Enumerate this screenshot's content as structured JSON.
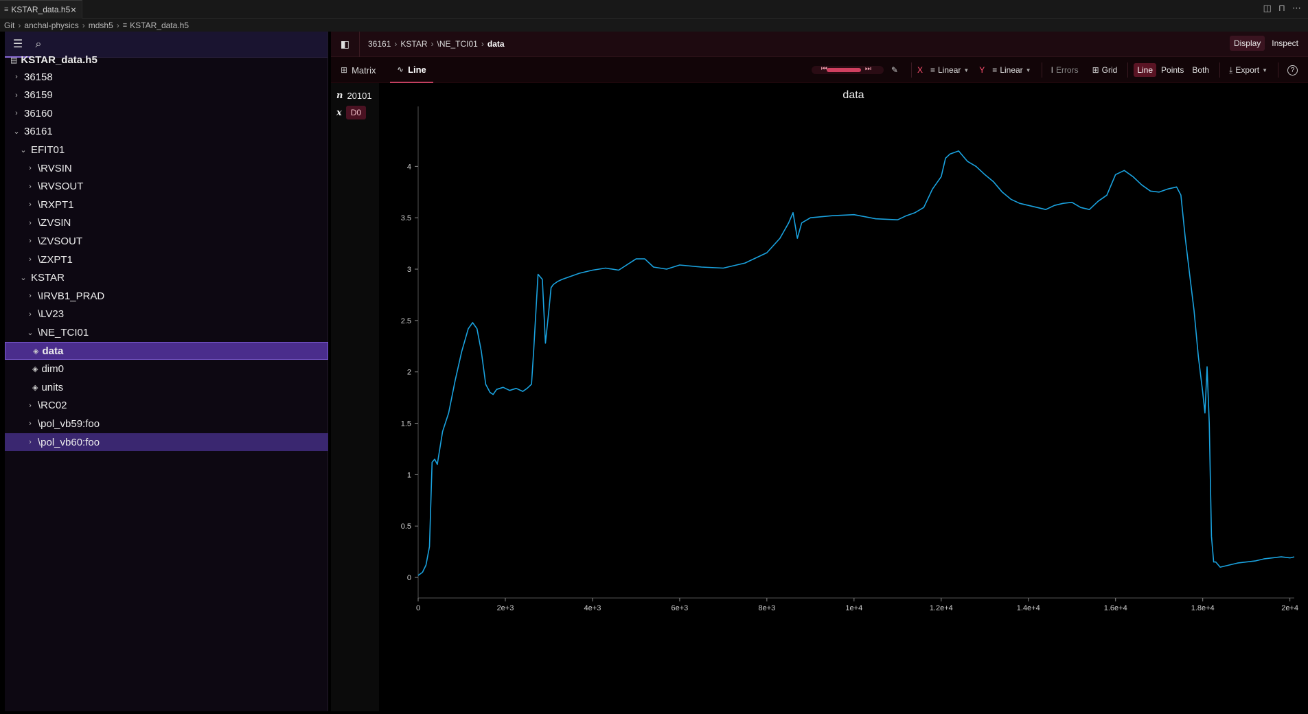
{
  "tab": {
    "title": "KSTAR_data.h5"
  },
  "breadcrumb": [
    "Git",
    "anchal-physics",
    "mdsh5",
    "KSTAR_data.h5"
  ],
  "sidebar": {
    "root": "KSTAR_data.h5",
    "nodes": [
      {
        "label": "36158",
        "depth": 0,
        "kind": "group",
        "open": false
      },
      {
        "label": "36159",
        "depth": 0,
        "kind": "group",
        "open": false
      },
      {
        "label": "36160",
        "depth": 0,
        "kind": "group",
        "open": false
      },
      {
        "label": "36161",
        "depth": 0,
        "kind": "group",
        "open": true
      },
      {
        "label": "EFIT01",
        "depth": 1,
        "kind": "group",
        "open": true
      },
      {
        "label": "\\RVSIN",
        "depth": 2,
        "kind": "group",
        "open": false
      },
      {
        "label": "\\RVSOUT",
        "depth": 2,
        "kind": "group",
        "open": false
      },
      {
        "label": "\\RXPT1",
        "depth": 2,
        "kind": "group",
        "open": false
      },
      {
        "label": "\\ZVSIN",
        "depth": 2,
        "kind": "group",
        "open": false
      },
      {
        "label": "\\ZVSOUT",
        "depth": 2,
        "kind": "group",
        "open": false
      },
      {
        "label": "\\ZXPT1",
        "depth": 2,
        "kind": "group",
        "open": false
      },
      {
        "label": "KSTAR",
        "depth": 1,
        "kind": "group",
        "open": true
      },
      {
        "label": "\\IRVB1_PRAD",
        "depth": 2,
        "kind": "group",
        "open": false
      },
      {
        "label": "\\LV23",
        "depth": 2,
        "kind": "group",
        "open": false
      },
      {
        "label": "\\NE_TCI01",
        "depth": 2,
        "kind": "group",
        "open": true
      },
      {
        "label": "data",
        "depth": 3,
        "kind": "dataset",
        "selected": true
      },
      {
        "label": "dim0",
        "depth": 3,
        "kind": "dataset"
      },
      {
        "label": "units",
        "depth": 3,
        "kind": "dataset"
      },
      {
        "label": "\\RC02",
        "depth": 2,
        "kind": "group",
        "open": false
      },
      {
        "label": "\\pol_vb59:foo",
        "depth": 2,
        "kind": "group",
        "open": false
      },
      {
        "label": "\\pol_vb60:foo",
        "depth": 2,
        "kind": "group",
        "open": false,
        "hover": true
      }
    ]
  },
  "main": {
    "path": [
      "36161",
      "KSTAR",
      "\\NE_TCI01",
      "data"
    ],
    "modes": [
      "Display",
      "Inspect"
    ],
    "tabs": [
      "Matrix",
      "Line"
    ],
    "toolbar": {
      "x_label": "X",
      "x_scale": "Linear",
      "y_label": "Y",
      "y_scale": "Linear",
      "errors": "Errors",
      "grid": "Grid",
      "line": "Line",
      "points": "Points",
      "both": "Both",
      "export": "Export"
    },
    "dims": {
      "n_label": "n",
      "n_value": "20101",
      "x_label": "x",
      "x_value": "D0"
    }
  },
  "colors": {
    "accent": "#c44060",
    "line": "#1aa3e0",
    "selection": "#4a2d8c"
  },
  "chart_data": {
    "type": "line",
    "title": "data",
    "xlabel": "",
    "ylabel": "",
    "xlim": [
      0,
      20100
    ],
    "ylim": [
      -0.2,
      4.45
    ],
    "xticks": [
      "0",
      "2e+3",
      "4e+3",
      "6e+3",
      "8e+3",
      "1e+4",
      "1.2e+4",
      "1.4e+4",
      "1.6e+4",
      "1.8e+4",
      "2e+4"
    ],
    "yticks": [
      "0",
      "0.5",
      "1",
      "1.5",
      "2",
      "2.5",
      "3",
      "3.5",
      "4"
    ],
    "grid": false,
    "series": [
      {
        "x": [
          0,
          100,
          180,
          260,
          320,
          380,
          440,
          560,
          700,
          850,
          1000,
          1150,
          1250,
          1350,
          1450,
          1550,
          1650,
          1720,
          1800,
          1950,
          2100,
          2250,
          2400,
          2500,
          2600,
          2650,
          2750,
          2850,
          2920,
          3000,
          3050,
          3100,
          3200,
          3300,
          3500,
          3700,
          4000,
          4300,
          4600,
          5000,
          5200,
          5400,
          5700,
          6000,
          6500,
          7000,
          7500,
          8000,
          8300,
          8500,
          8600,
          8700,
          8800,
          9000,
          9500,
          10000,
          10500,
          11000,
          11200,
          11400,
          11600,
          11800,
          12000,
          12100,
          12200,
          12400,
          12600,
          12800,
          13000,
          13200,
          13400,
          13600,
          13800,
          14000,
          14200,
          14400,
          14600,
          14800,
          15000,
          15200,
          15400,
          15600,
          15800,
          16000,
          16200,
          16400,
          16600,
          16800,
          17000,
          17200,
          17400,
          17500,
          17600,
          17700,
          17800,
          17900,
          18000,
          18050,
          18100,
          18150,
          18200,
          18250,
          18300,
          18400,
          18600,
          18800,
          19000,
          19200,
          19400,
          19600,
          19800,
          20000,
          20100
        ],
        "y": [
          0.02,
          0.05,
          0.12,
          0.3,
          1.12,
          1.15,
          1.1,
          1.42,
          1.6,
          1.92,
          2.2,
          2.42,
          2.48,
          2.42,
          2.2,
          1.88,
          1.8,
          1.78,
          1.83,
          1.85,
          1.82,
          1.84,
          1.81,
          1.84,
          1.88,
          2.2,
          2.95,
          2.9,
          2.28,
          2.6,
          2.82,
          2.85,
          2.88,
          2.9,
          2.93,
          2.96,
          2.99,
          3.01,
          2.99,
          3.1,
          3.1,
          3.02,
          3.0,
          3.04,
          3.02,
          3.01,
          3.06,
          3.16,
          3.3,
          3.45,
          3.55,
          3.3,
          3.45,
          3.5,
          3.52,
          3.53,
          3.49,
          3.48,
          3.52,
          3.55,
          3.6,
          3.78,
          3.9,
          4.08,
          4.12,
          4.15,
          4.05,
          4.0,
          3.92,
          3.85,
          3.75,
          3.68,
          3.64,
          3.62,
          3.6,
          3.58,
          3.62,
          3.64,
          3.65,
          3.6,
          3.58,
          3.66,
          3.72,
          3.92,
          3.96,
          3.9,
          3.82,
          3.76,
          3.75,
          3.78,
          3.8,
          3.72,
          3.3,
          2.95,
          2.6,
          2.15,
          1.8,
          1.6,
          2.05,
          1.5,
          0.4,
          0.15,
          0.15,
          0.1,
          0.12,
          0.14,
          0.15,
          0.16,
          0.18,
          0.19,
          0.2,
          0.19,
          0.2
        ]
      }
    ]
  }
}
